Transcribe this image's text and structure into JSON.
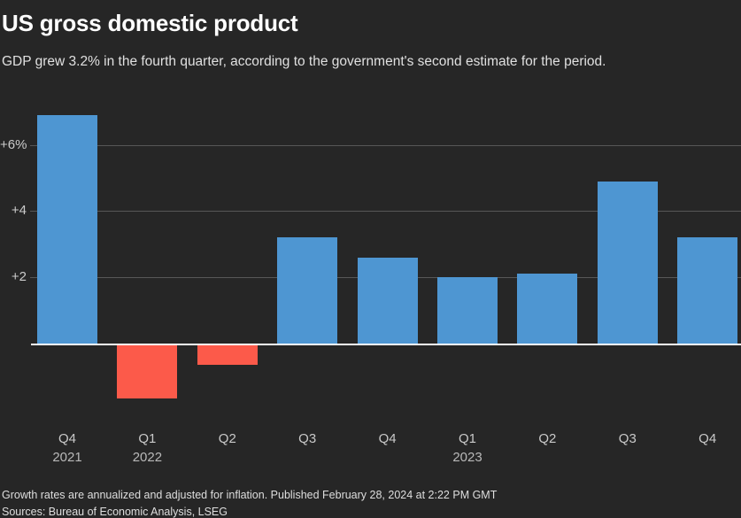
{
  "header": {
    "title": "US gross domestic product",
    "subtitle": "GDP grew 3.2% in the fourth quarter, according to the government's second estimate for the period."
  },
  "chart_data": {
    "type": "bar",
    "title": "US gross domestic product",
    "categories": [
      "Q4",
      "Q1",
      "Q2",
      "Q3",
      "Q4",
      "Q1",
      "Q2",
      "Q3",
      "Q4"
    ],
    "full_labels": [
      "Q4 2021",
      "Q1 2022",
      "Q2 2022",
      "Q3 2022",
      "Q4 2022",
      "Q1 2023",
      "Q2 2023",
      "Q3 2023",
      "Q4 2023"
    ],
    "year_labels": [
      {
        "index": 0,
        "label": "2021"
      },
      {
        "index": 1,
        "label": "2022"
      },
      {
        "index": 5,
        "label": "2023"
      }
    ],
    "values": [
      6.9,
      -1.6,
      -0.6,
      3.2,
      2.6,
      2.0,
      2.1,
      4.9,
      3.2
    ],
    "unit": "percent, annualized quarterly growth rate",
    "ytick_labels": [
      "+6%",
      "+4",
      "+2"
    ],
    "ytick_values": [
      6,
      4,
      2
    ],
    "ylim": [
      -2.2,
      7.2
    ],
    "grid": true,
    "legend": "none",
    "positive_color": "#4e96d2",
    "negative_color": "#fc5a4a",
    "zero_line_color": "#ffffff",
    "gridline_color": "#575757",
    "background_color": "#262626"
  },
  "footer": {
    "note": "Growth rates are annualized and adjusted for inflation. Published February 28, 2024 at 2:22 PM GMT",
    "sources": "Sources: Bureau of Economic Analysis, LSEG"
  }
}
